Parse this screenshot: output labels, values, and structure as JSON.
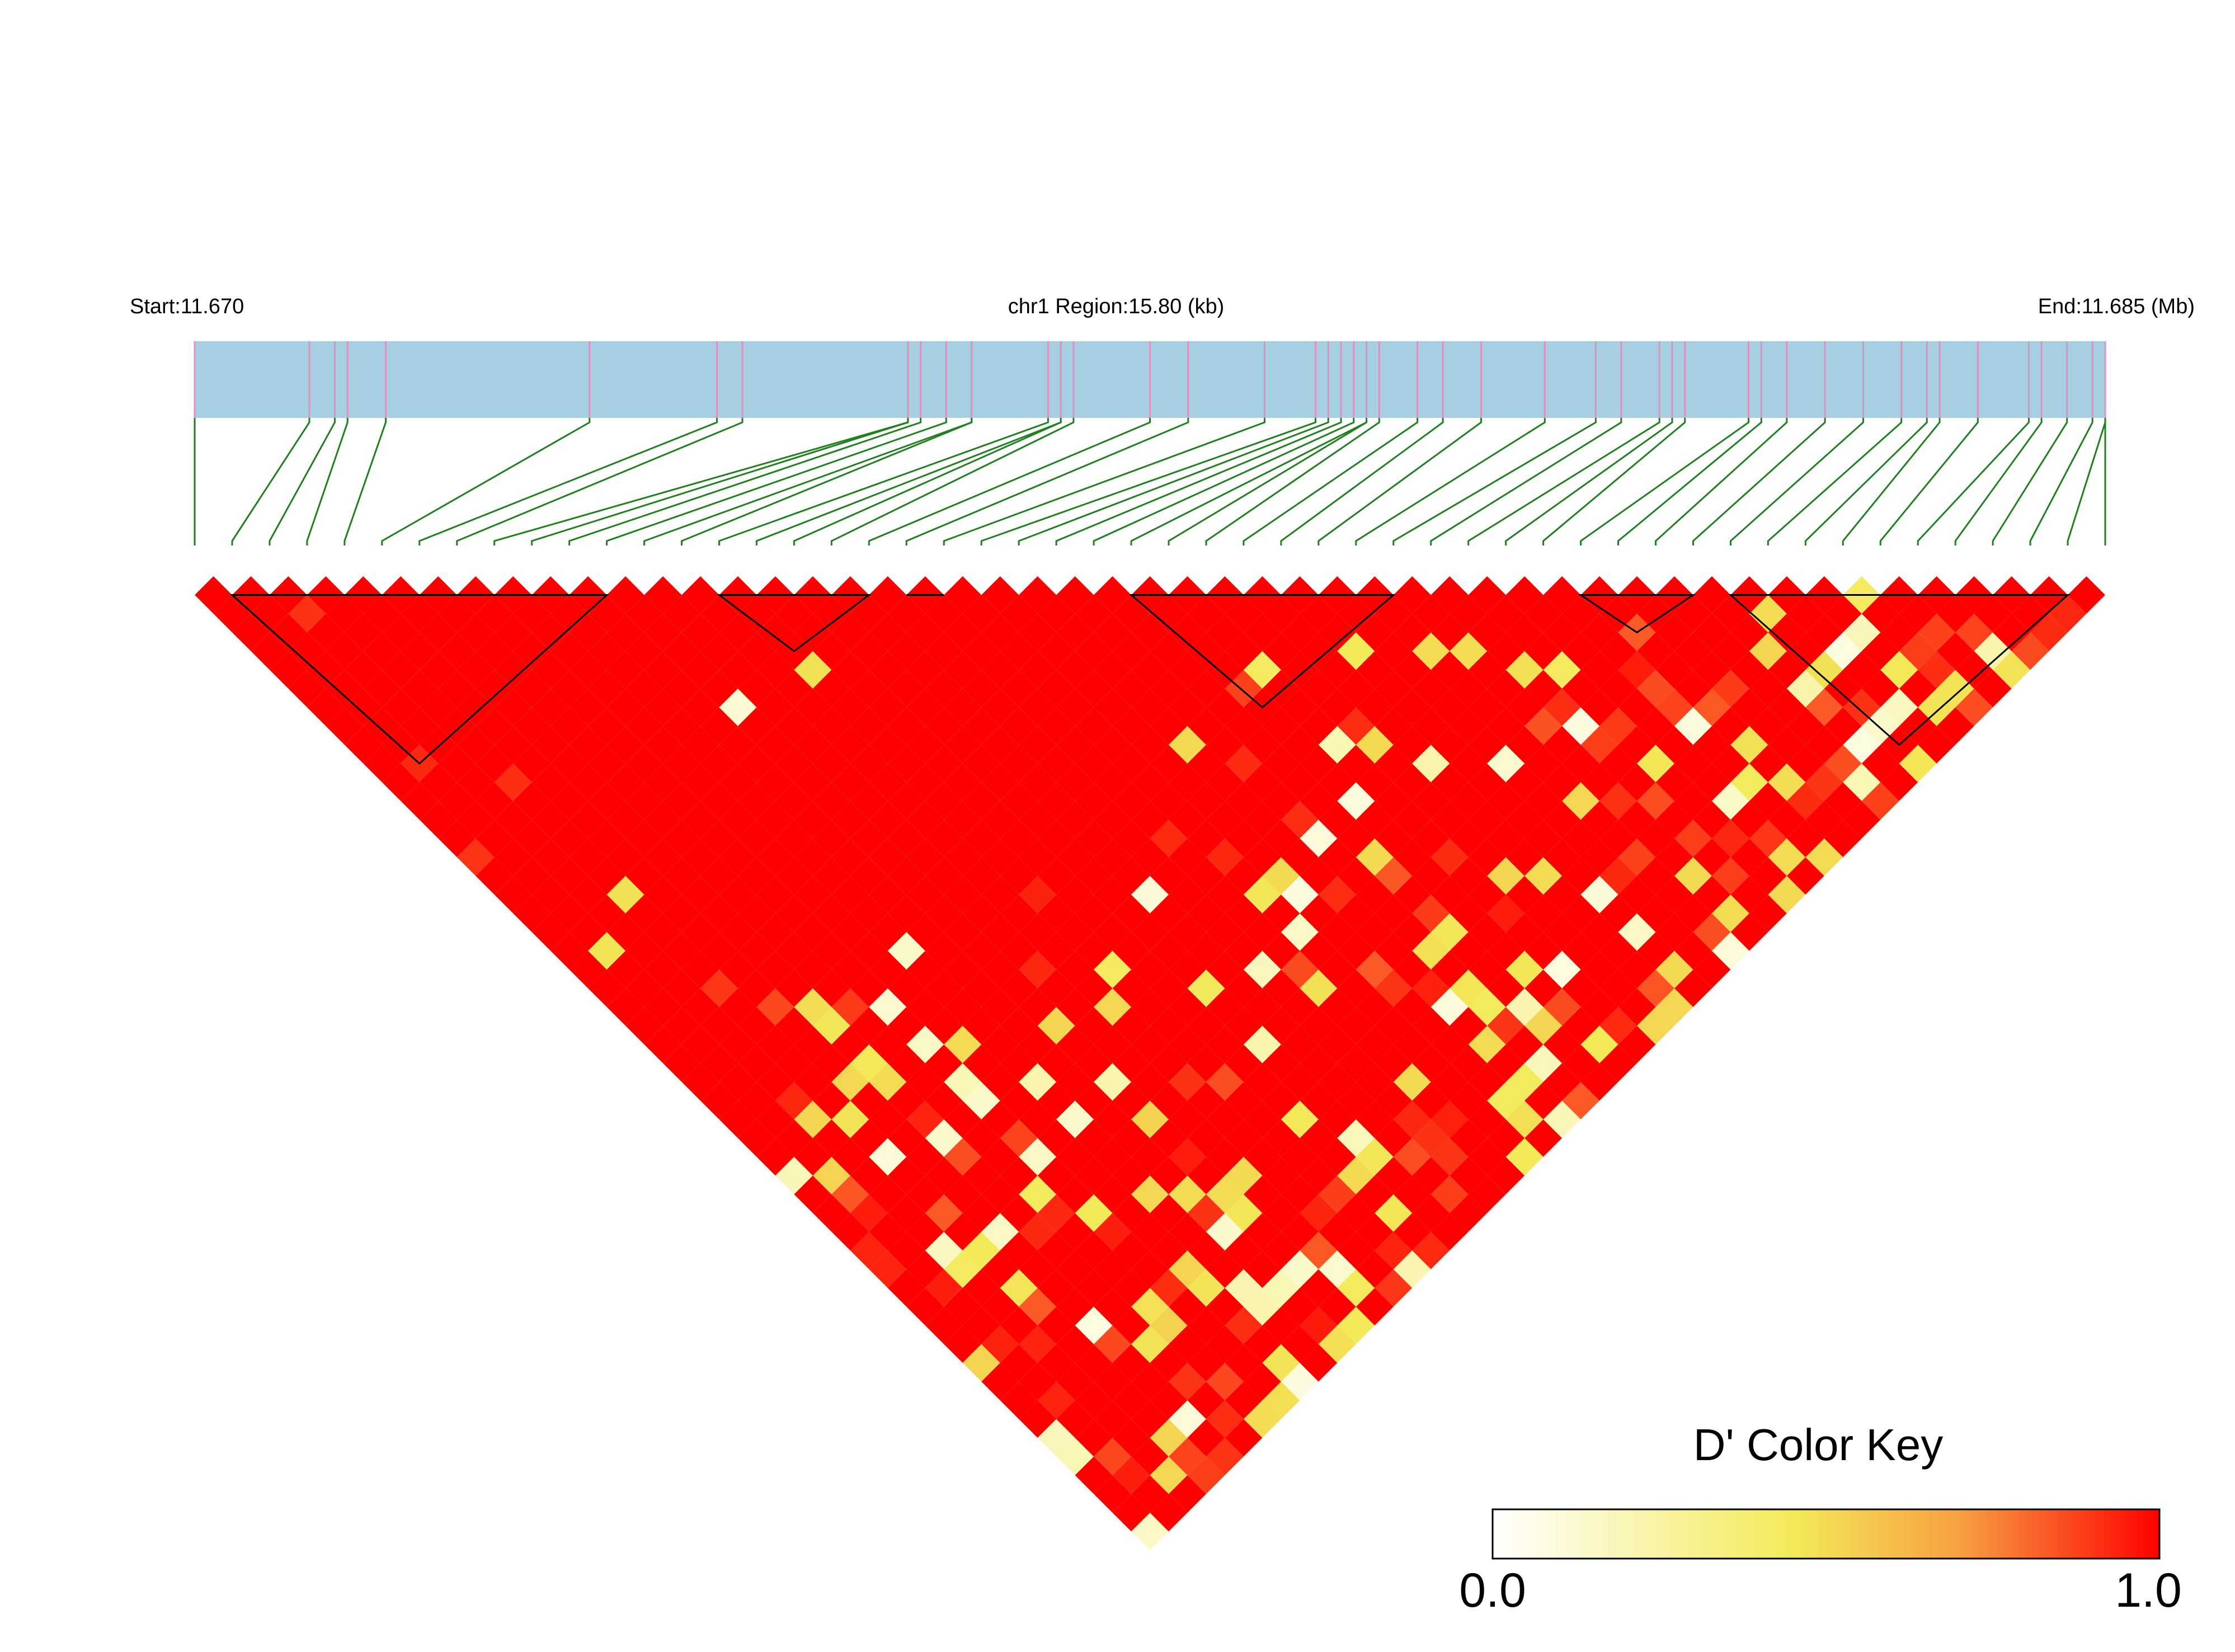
{
  "header": {
    "start_label": "Start:11.670",
    "region_label": "chr1 Region:15.80 (kb)",
    "end_label": "End:11.685 (Mb)"
  },
  "colors": {
    "region_bar": "#a7cfe2",
    "snp_tick": "#e090c0",
    "connector": "#208020",
    "ld_high": "#ff0000",
    "block_outline": "#000000"
  },
  "color_key": {
    "title": "D' Color Key",
    "min_label": "0.0",
    "max_label": "1.0",
    "stops": [
      "#ffffff",
      "#f3ea58",
      "#f7a042",
      "#ff0000"
    ]
  },
  "chart_data": {
    "type": "heatmap",
    "title": "",
    "chromosome": "chr1",
    "region_kb": 15.8,
    "start_mb": 11.67,
    "end_mb": 11.685,
    "snp_count": 52,
    "snp_positions_mb": [
      11.67,
      11.6709,
      11.6711,
      11.6712,
      11.6715,
      11.6731,
      11.6741,
      11.6743,
      11.6756,
      11.6756,
      11.6757,
      11.6759,
      11.6761,
      11.6761,
      11.6767,
      11.6768,
      11.6768,
      11.6769,
      11.6775,
      11.6778,
      11.6784,
      11.6788,
      11.6789,
      11.679,
      11.6791,
      11.6792,
      11.6792,
      11.6793,
      11.6796,
      11.6798,
      11.6801,
      11.6806,
      11.681,
      11.6812,
      11.6815,
      11.6816,
      11.6817,
      11.6822,
      11.6823,
      11.6825,
      11.6828,
      11.6831,
      11.6834,
      11.6836,
      11.6837,
      11.684,
      11.6844,
      11.6845,
      11.6847,
      11.6849,
      11.685,
      11.685
    ],
    "haplotype_blocks": [
      [
        1,
        11
      ],
      [
        14,
        18
      ],
      [
        19,
        20
      ],
      [
        25,
        32
      ],
      [
        37,
        40
      ],
      [
        41,
        50
      ]
    ],
    "d_prime_scale": [
      0.0,
      1.0
    ],
    "d_prime_matrix_note": "pairwise D' shown as diamonds; predominantly 1.0 (red) with lower values toward the bottom and right"
  }
}
